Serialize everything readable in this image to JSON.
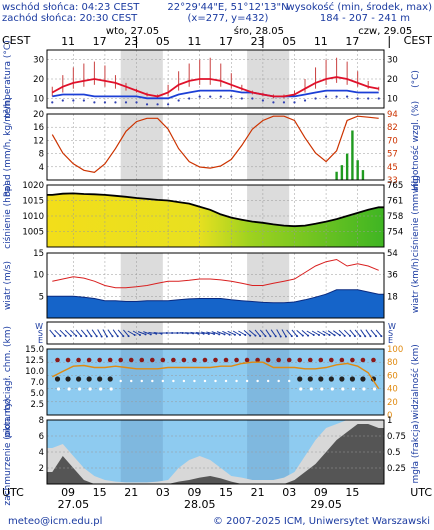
{
  "header": {
    "sunrise": "wschód słońca: 04:23 CEST",
    "sunset": "zachód słońca: 20:30 CEST",
    "coords": "22°29'44\"E, 51°12'13\"N",
    "grid": "(x=277, y=432)",
    "altitude_title": "wysokość (min, środek, max)",
    "altitude_values": "184 - 207 - 241 m"
  },
  "top_axis": {
    "tz_left": "CEST",
    "tz_right": "CEST",
    "days": [
      {
        "label": "wto, 27.05",
        "at_hour": 0
      },
      {
        "label": "śro, 28.05",
        "at_hour": 24
      },
      {
        "label": "czw, 29.05",
        "at_hour": 48
      }
    ],
    "hours": [
      {
        "label": "11",
        "at_hour": -13
      },
      {
        "label": "17",
        "at_hour": -7
      },
      {
        "label": "23",
        "at_hour": -1
      },
      {
        "label": "05",
        "at_hour": 5
      },
      {
        "label": "11",
        "at_hour": 11
      },
      {
        "label": "17",
        "at_hour": 17
      },
      {
        "label": "23",
        "at_hour": 23
      },
      {
        "label": "05",
        "at_hour": 29
      },
      {
        "label": "11",
        "at_hour": 35
      },
      {
        "label": "17",
        "at_hour": 41
      }
    ]
  },
  "bottom_axis": {
    "tz_left": "UTC",
    "tz_right": "UTC",
    "hours": [
      {
        "label": "09",
        "at_hour": -13
      },
      {
        "label": "15",
        "at_hour": -7
      },
      {
        "label": "21",
        "at_hour": -1
      },
      {
        "label": "03",
        "at_hour": 5
      },
      {
        "label": "09",
        "at_hour": 11
      },
      {
        "label": "15",
        "at_hour": 17
      },
      {
        "label": "21",
        "at_hour": 23
      },
      {
        "label": "03",
        "at_hour": 29
      },
      {
        "label": "09",
        "at_hour": 35
      },
      {
        "label": "15",
        "at_hour": 41
      }
    ],
    "days": [
      {
        "label": "27.05",
        "at_hour": -12
      },
      {
        "label": "28.05",
        "at_hour": 12
      },
      {
        "label": "29.05",
        "at_hour": 36
      }
    ]
  },
  "night_bands": [
    [
      -3,
      5
    ],
    [
      21,
      29
    ]
  ],
  "colors": {
    "temp_line": "#e0102a",
    "dew_line": "#1c3fd6",
    "rh_line": "#cc3300",
    "rain_bar": "#1f9a1f",
    "pressure_fill_high": "#f2de1a",
    "pressure_fill_low": "#3fb523",
    "wind_fill": "#1564c9",
    "wind_gust": "#d92020",
    "cloud_sky": "#8ecbf0",
    "visibility_line": "#e08a10",
    "cloud_fill_dark": "#555555",
    "cloud_fill_light": "#d8d8d8"
  },
  "footer": {
    "email": "meteo@icm.edu.pl",
    "copyright": "© 2007-2025 ICM, Uniwersytet Warszawski"
  },
  "chart_data": [
    {
      "type": "line",
      "id": "temperature",
      "ylabel_left": "temperatura (°C)",
      "ylabel_right": "(°C)",
      "ylim": [
        5,
        35
      ],
      "yticks_left": [
        "10",
        "20",
        "30"
      ],
      "yticks_right": [
        "10",
        "20",
        "30"
      ],
      "x_hours": [
        -16,
        -14,
        -12,
        -10,
        -8,
        -6,
        -4,
        -2,
        0,
        2,
        4,
        6,
        8,
        10,
        12,
        14,
        16,
        18,
        20,
        22,
        24,
        26,
        28,
        30,
        32,
        34,
        36,
        38,
        40,
        42,
        44,
        46
      ],
      "series": [
        {
          "role": "temperature",
          "values": [
            13,
            16,
            18,
            19,
            20,
            19,
            18,
            16,
            14,
            12,
            11,
            13,
            17,
            19,
            20,
            20,
            19,
            17,
            15,
            13,
            12,
            11,
            11,
            12,
            15,
            18,
            20,
            21,
            20,
            18,
            16,
            15
          ]
        },
        {
          "role": "dew_point",
          "values": [
            11,
            12,
            12,
            12,
            11,
            11,
            11,
            11,
            11,
            10,
            10,
            10,
            12,
            13,
            14,
            14,
            14,
            14,
            13,
            13,
            12,
            11,
            11,
            11,
            12,
            13,
            14,
            14,
            14,
            13,
            13,
            13
          ]
        },
        {
          "role": "temp_max_whisker",
          "values": [
            16,
            22,
            26,
            28,
            29,
            27,
            22,
            18,
            15,
            13,
            12,
            17,
            24,
            28,
            30,
            31,
            28,
            23,
            17,
            14,
            13,
            12,
            12,
            14,
            20,
            26,
            30,
            31,
            29,
            24,
            19,
            16
          ]
        },
        {
          "role": "temp_min_whisker",
          "values": [
            11,
            13,
            15,
            16,
            17,
            16,
            15,
            14,
            13,
            11,
            10,
            11,
            14,
            16,
            17,
            17,
            16,
            15,
            14,
            12,
            11,
            10,
            10,
            11,
            13,
            15,
            17,
            18,
            17,
            16,
            15,
            14
          ]
        }
      ]
    },
    {
      "type": "bar",
      "id": "precipitation_humidity",
      "ylabel_left": "opad (mm/h, kg/m²/h)",
      "ylabel_right": "wilgotność wzgl. (%)",
      "ylim_left": [
        0,
        20
      ],
      "ylim_right": [
        33,
        94
      ],
      "yticks_left": [
        "4",
        "8",
        "12",
        "16",
        "20"
      ],
      "yticks_right": [
        "33",
        "45",
        "57",
        "70",
        "82",
        "94"
      ],
      "humidity_x": [
        -16,
        -14,
        -12,
        -10,
        -8,
        -6,
        -4,
        -2,
        0,
        2,
        4,
        6,
        8,
        10,
        12,
        14,
        16,
        18,
        20,
        22,
        24,
        26,
        28,
        30,
        32,
        34,
        36,
        38,
        40,
        42,
        44,
        46
      ],
      "humidity_values": [
        75,
        58,
        48,
        42,
        40,
        48,
        62,
        78,
        87,
        90,
        90,
        80,
        62,
        50,
        45,
        44,
        46,
        52,
        65,
        80,
        88,
        92,
        92,
        88,
        72,
        58,
        50,
        60,
        88,
        92,
        91,
        90
      ],
      "precip_x": [
        38,
        39,
        40,
        41,
        42,
        43
      ],
      "precip_values": [
        2.5,
        4.5,
        8,
        15,
        6,
        3
      ]
    },
    {
      "type": "area",
      "id": "pressure",
      "ylabel_left": "ciśnienie (hPa)",
      "ylabel_right": "ciśnienie (mm Hg)",
      "ylim_left": [
        1000,
        1020
      ],
      "ylim_right": [
        751,
        765
      ],
      "yticks_left": [
        "1005",
        "1010",
        "1015",
        "1020"
      ],
      "yticks_right": [
        "754",
        "758",
        "761",
        "765"
      ],
      "x_hours": [
        -16,
        -14,
        -12,
        -10,
        -8,
        -6,
        -4,
        -2,
        0,
        2,
        4,
        6,
        8,
        10,
        12,
        14,
        16,
        18,
        20,
        22,
        24,
        26,
        28,
        30,
        32,
        34,
        36,
        38,
        40,
        42,
        44,
        46
      ],
      "values": [
        1016.8,
        1017.2,
        1017.3,
        1017.1,
        1017,
        1016.8,
        1016.5,
        1016.2,
        1015.8,
        1015.5,
        1015.2,
        1015,
        1014.5,
        1014,
        1013,
        1012,
        1010.5,
        1009.5,
        1008.8,
        1008.2,
        1007.8,
        1007.3,
        1006.9,
        1006.7,
        1006.9,
        1007.5,
        1008.2,
        1009,
        1010,
        1011,
        1012,
        1012.8
      ]
    },
    {
      "type": "area",
      "id": "wind",
      "ylabel_left": "wiatr (m/s)",
      "ylabel_right": "wiatr (km/h)",
      "ylim_left": [
        0,
        15
      ],
      "ylim_right": [
        0,
        54
      ],
      "yticks_left": [
        "5",
        "10",
        "15"
      ],
      "yticks_right": [
        "18",
        "36",
        "54"
      ],
      "x_hours": [
        -16,
        -14,
        -12,
        -10,
        -8,
        -6,
        -4,
        -2,
        0,
        2,
        4,
        6,
        8,
        10,
        12,
        14,
        16,
        18,
        20,
        22,
        24,
        26,
        28,
        30,
        32,
        34,
        36,
        38,
        40,
        42,
        44,
        46
      ],
      "speed": [
        5,
        5,
        5,
        4.8,
        4.5,
        4,
        4,
        3.8,
        3.8,
        4,
        4,
        4,
        4.2,
        4.4,
        4.5,
        4.5,
        4.5,
        4.2,
        4,
        3.8,
        3.6,
        3.5,
        3.5,
        3.7,
        4.2,
        4.8,
        5.5,
        6.5,
        6.5,
        6.5,
        6,
        5.5
      ],
      "gust": [
        8.5,
        9,
        9.5,
        9.2,
        8.5,
        7.5,
        7,
        7,
        7.2,
        7.5,
        8,
        8.5,
        8.5,
        8.7,
        9,
        9,
        8.8,
        8.5,
        8,
        7.5,
        7.5,
        8,
        8.5,
        9,
        10.5,
        12,
        13,
        13.5,
        12,
        12.5,
        12,
        11
      ]
    },
    {
      "type": "scatter",
      "id": "wind_direction",
      "ylabels_left": [
        "W",
        "S",
        "E"
      ],
      "ylabels_right": [
        "W",
        "S",
        "E"
      ],
      "x_hours": [
        -16,
        -14,
        -12,
        -10,
        -8,
        -6,
        -4,
        -2,
        0,
        2,
        4,
        6,
        8,
        10,
        12,
        14,
        16,
        18,
        20,
        22,
        24,
        26,
        28,
        30,
        32,
        34,
        36,
        38,
        40,
        42,
        44,
        46
      ],
      "direction_deg": [
        320,
        315,
        315,
        320,
        325,
        330,
        325,
        320,
        300,
        290,
        280,
        270,
        270,
        275,
        280,
        285,
        290,
        295,
        300,
        310,
        320,
        325,
        330,
        320,
        310,
        300,
        300,
        305,
        315,
        320,
        325,
        320
      ]
    },
    {
      "type": "scatter",
      "id": "cloud_visibility",
      "ylabel_left": "pion. rozciągł. chm. (km)",
      "ylabel_right": "widzialność (km)",
      "ylim_left": [
        0,
        15
      ],
      "ylim_right": [
        0,
        100
      ],
      "yticks_left": [
        "2.5",
        "5.0",
        "7.0",
        "10.0",
        "12.5",
        "15.0"
      ],
      "yticks_right": [
        "0",
        "20",
        "40",
        "60",
        "80",
        "100"
      ],
      "visibility_x": [
        -16,
        -14,
        -12,
        -10,
        -8,
        -6,
        -4,
        -2,
        0,
        2,
        4,
        6,
        8,
        10,
        12,
        14,
        16,
        18,
        20,
        22,
        24,
        26,
        28,
        30,
        32,
        34,
        36,
        38,
        40,
        42,
        44,
        46
      ],
      "visibility_values": [
        58,
        66,
        74,
        75,
        72,
        72,
        74,
        72,
        70,
        70,
        70,
        72,
        72,
        72,
        72,
        72,
        74,
        74,
        78,
        80,
        80,
        72,
        72,
        72,
        70,
        70,
        72,
        76,
        78,
        74,
        64,
        40
      ]
    },
    {
      "type": "area",
      "id": "cloud_cover",
      "ylabel_left": "zachmurzenie (oktanty)",
      "ylabel_right": "mgła (frakcja)",
      "ylim_left": [
        0,
        8
      ],
      "ylim_right": [
        0,
        1
      ],
      "yticks_left": [
        "2",
        "4",
        "6",
        "8"
      ],
      "yticks_right": [
        "0.25",
        "0.5",
        "0.75",
        "1"
      ],
      "x_hours": [
        -16,
        -14,
        -12,
        -10,
        -8,
        -6,
        -4,
        -2,
        0,
        2,
        4,
        6,
        8,
        10,
        12,
        14,
        16,
        18,
        20,
        22,
        24,
        26,
        28,
        30,
        32,
        34,
        36,
        38,
        40,
        42,
        44,
        46
      ],
      "low_cloud": [
        1.5,
        3.5,
        2,
        0.5,
        0,
        0,
        0,
        0,
        0,
        0,
        0,
        0,
        0.3,
        0.5,
        0.8,
        1,
        0.7,
        0.3,
        0,
        0,
        0,
        0,
        0,
        0.5,
        1.5,
        2.5,
        4,
        5.5,
        6.5,
        7.5,
        7.5,
        7
      ],
      "total_cloud": [
        4.5,
        5,
        3.5,
        2,
        1,
        0.5,
        0.3,
        0.2,
        0.2,
        0.2,
        0.3,
        0.5,
        2,
        3,
        3.5,
        3,
        2,
        1,
        0.8,
        0.5,
        0.5,
        0.5,
        0.8,
        1.5,
        3.5,
        5.5,
        7,
        7.5,
        8,
        8,
        8,
        8
      ]
    }
  ]
}
